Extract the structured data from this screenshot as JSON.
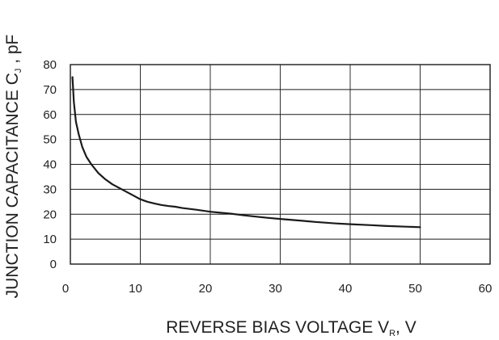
{
  "chart_data": {
    "type": "line",
    "title": "",
    "xlabel": {
      "main": "REVERSE BIAS VOLTAGE V",
      "sub": "R",
      "suffix": ", V"
    },
    "ylabel": {
      "main": "JUNCTION CAPACITANCE C",
      "sub": "J",
      "suffix": " , pF"
    },
    "xlim": [
      0,
      60
    ],
    "ylim": [
      0,
      80
    ],
    "xticks": [
      "0",
      "10",
      "20",
      "30",
      "40",
      "50",
      "60"
    ],
    "yticks": [
      "0",
      "10",
      "20",
      "30",
      "40",
      "50",
      "60",
      "70",
      "80"
    ],
    "grid": true,
    "legend": "none",
    "line_color": "#1a1a1a",
    "series": [
      {
        "x": [
          0.3,
          0.5,
          0.8,
          1.2,
          1.7,
          2.3,
          3.0,
          4.0,
          5.0,
          6.0,
          7.0,
          8.0,
          9.0,
          10.0,
          11.0,
          12.0,
          13.0,
          14.0,
          15.0,
          16.0,
          18.0,
          20.0,
          23.0,
          25.0,
          28.0,
          30.0,
          33.0,
          35.0,
          38.0,
          40.0,
          43.0,
          45.0,
          48.0,
          50.0
        ],
        "y": [
          75,
          65,
          57,
          52,
          47,
          43,
          40,
          36.5,
          34,
          32,
          30.5,
          29,
          27.5,
          26,
          25,
          24.3,
          23.7,
          23.3,
          23,
          22.5,
          21.8,
          21,
          20.2,
          19.5,
          18.6,
          18.1,
          17.4,
          16.9,
          16.3,
          16.0,
          15.6,
          15.3,
          15.0,
          14.8
        ]
      }
    ]
  }
}
